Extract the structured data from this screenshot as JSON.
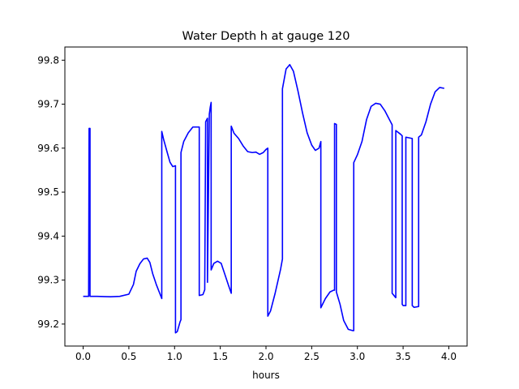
{
  "chart_data": {
    "type": "line",
    "title": "Water Depth h at gauge 120",
    "xlabel": "hours",
    "ylabel": "",
    "xlim": [
      -0.2,
      4.2
    ],
    "ylim": [
      99.15,
      99.83
    ],
    "x_ticks": [
      "0.0",
      "0.5",
      "1.0",
      "1.5",
      "2.0",
      "2.5",
      "3.0",
      "3.5",
      "4.0"
    ],
    "y_ticks": [
      "99.2",
      "99.3",
      "99.4",
      "99.5",
      "99.6",
      "99.7",
      "99.8"
    ],
    "grid": false,
    "legend": "none",
    "series": [
      {
        "color": "#0000ff",
        "points": [
          [
            0.0,
            99.263
          ],
          [
            0.05,
            99.263
          ],
          [
            0.06,
            99.263
          ],
          [
            0.065,
            99.645
          ],
          [
            0.075,
            99.645
          ],
          [
            0.075,
            99.263
          ],
          [
            0.15,
            99.263
          ],
          [
            0.3,
            99.262
          ],
          [
            0.4,
            99.263
          ],
          [
            0.5,
            99.268
          ],
          [
            0.55,
            99.29
          ],
          [
            0.58,
            99.32
          ],
          [
            0.62,
            99.337
          ],
          [
            0.66,
            99.348
          ],
          [
            0.7,
            99.35
          ],
          [
            0.73,
            99.34
          ],
          [
            0.76,
            99.315
          ],
          [
            0.8,
            99.29
          ],
          [
            0.86,
            99.258
          ],
          [
            0.86,
            99.638
          ],
          [
            0.88,
            99.62
          ],
          [
            0.92,
            99.59
          ],
          [
            0.95,
            99.568
          ],
          [
            0.98,
            99.558
          ],
          [
            1.01,
            99.56
          ],
          [
            1.01,
            99.18
          ],
          [
            1.03,
            99.183
          ],
          [
            1.06,
            99.205
          ],
          [
            1.07,
            99.21
          ],
          [
            1.07,
            99.59
          ],
          [
            1.1,
            99.615
          ],
          [
            1.15,
            99.635
          ],
          [
            1.2,
            99.648
          ],
          [
            1.27,
            99.648
          ],
          [
            1.27,
            99.265
          ],
          [
            1.31,
            99.267
          ],
          [
            1.33,
            99.278
          ],
          [
            1.34,
            99.66
          ],
          [
            1.36,
            99.668
          ],
          [
            1.36,
            99.295
          ],
          [
            1.38,
            99.677
          ],
          [
            1.39,
            99.693
          ],
          [
            1.4,
            99.704
          ],
          [
            1.4,
            99.323
          ],
          [
            1.43,
            99.338
          ],
          [
            1.47,
            99.343
          ],
          [
            1.51,
            99.338
          ],
          [
            1.55,
            99.313
          ],
          [
            1.59,
            99.288
          ],
          [
            1.62,
            99.27
          ],
          [
            1.62,
            99.65
          ],
          [
            1.65,
            99.634
          ],
          [
            1.7,
            99.622
          ],
          [
            1.75,
            99.605
          ],
          [
            1.8,
            99.592
          ],
          [
            1.85,
            99.59
          ],
          [
            1.89,
            99.591
          ],
          [
            1.93,
            99.586
          ],
          [
            1.97,
            99.59
          ],
          [
            2.0,
            99.597
          ],
          [
            2.02,
            99.6
          ],
          [
            2.02,
            99.218
          ],
          [
            2.05,
            99.23
          ],
          [
            2.1,
            99.27
          ],
          [
            2.16,
            99.325
          ],
          [
            2.18,
            99.348
          ],
          [
            2.18,
            99.735
          ],
          [
            2.22,
            99.78
          ],
          [
            2.26,
            99.79
          ],
          [
            2.3,
            99.775
          ],
          [
            2.35,
            99.73
          ],
          [
            2.4,
            99.68
          ],
          [
            2.45,
            99.635
          ],
          [
            2.5,
            99.607
          ],
          [
            2.54,
            99.595
          ],
          [
            2.58,
            99.6
          ],
          [
            2.6,
            99.615
          ],
          [
            2.6,
            99.237
          ],
          [
            2.65,
            99.258
          ],
          [
            2.7,
            99.273
          ],
          [
            2.74,
            99.277
          ],
          [
            2.75,
            99.277
          ],
          [
            2.75,
            99.656
          ],
          [
            2.77,
            99.654
          ],
          [
            2.77,
            99.273
          ],
          [
            2.81,
            99.245
          ],
          [
            2.85,
            99.208
          ],
          [
            2.9,
            99.188
          ],
          [
            2.95,
            99.185
          ],
          [
            2.96,
            99.185
          ],
          [
            2.96,
            99.567
          ],
          [
            3.0,
            99.585
          ],
          [
            3.05,
            99.615
          ],
          [
            3.1,
            99.665
          ],
          [
            3.15,
            99.695
          ],
          [
            3.2,
            99.702
          ],
          [
            3.25,
            99.7
          ],
          [
            3.3,
            99.685
          ],
          [
            3.35,
            99.665
          ],
          [
            3.38,
            99.653
          ],
          [
            3.38,
            99.27
          ],
          [
            3.42,
            99.26
          ],
          [
            3.42,
            99.64
          ],
          [
            3.47,
            99.632
          ],
          [
            3.49,
            99.628
          ],
          [
            3.49,
            99.245
          ],
          [
            3.5,
            99.242
          ],
          [
            3.53,
            99.242
          ],
          [
            3.53,
            99.625
          ],
          [
            3.6,
            99.622
          ],
          [
            3.6,
            99.242
          ],
          [
            3.62,
            99.238
          ],
          [
            3.67,
            99.24
          ],
          [
            3.67,
            99.625
          ],
          [
            3.7,
            99.63
          ],
          [
            3.75,
            99.66
          ],
          [
            3.8,
            99.7
          ],
          [
            3.85,
            99.728
          ],
          [
            3.9,
            99.738
          ],
          [
            3.95,
            99.736
          ]
        ]
      }
    ]
  }
}
